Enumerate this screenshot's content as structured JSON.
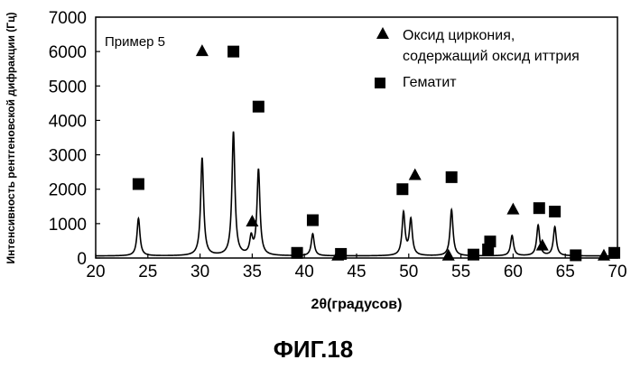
{
  "chart_data": {
    "type": "line",
    "panel_label": "Пример 5",
    "xlabel": "2θ(градусов)",
    "ylabel": "Интенсивность рентгеновской дифракции (Гц)",
    "xlim": [
      20,
      70
    ],
    "ylim": [
      0,
      7000
    ],
    "x_ticks": [
      20,
      25,
      30,
      35,
      40,
      45,
      50,
      55,
      60,
      65,
      70
    ],
    "y_ticks": [
      0,
      1000,
      2000,
      3000,
      4000,
      5000,
      6000,
      7000
    ],
    "x_tick_labels": [
      "20",
      "25",
      "30",
      "35",
      "40",
      "45",
      "50",
      "55",
      "60",
      "65",
      "70"
    ],
    "y_tick_labels": [
      "0",
      "1000",
      "2000",
      "3000",
      "4000",
      "5000",
      "6000",
      "7000"
    ],
    "baseline": 60,
    "peaks": [
      {
        "x": 24.1,
        "y": 1150
      },
      {
        "x": 30.2,
        "y": 2900
      },
      {
        "x": 33.2,
        "y": 3650
      },
      {
        "x": 34.9,
        "y": 550
      },
      {
        "x": 35.6,
        "y": 2550
      },
      {
        "x": 40.8,
        "y": 700
      },
      {
        "x": 49.5,
        "y": 1300
      },
      {
        "x": 50.2,
        "y": 1100
      },
      {
        "x": 54.1,
        "y": 1400
      },
      {
        "x": 59.9,
        "y": 650
      },
      {
        "x": 62.4,
        "y": 950
      },
      {
        "x": 64.0,
        "y": 900
      }
    ],
    "series": [
      {
        "name": "Оксид циркония, содержащий оксид иттрия",
        "marker": "triangle",
        "points": [
          {
            "x": 30.2,
            "y": 6000
          },
          {
            "x": 35.0,
            "y": 1050
          },
          {
            "x": 43.2,
            "y": 60
          },
          {
            "x": 50.6,
            "y": 2400
          },
          {
            "x": 53.8,
            "y": 60
          },
          {
            "x": 60.0,
            "y": 1400
          },
          {
            "x": 62.8,
            "y": 350
          },
          {
            "x": 68.7,
            "y": 60
          }
        ]
      },
      {
        "name": "Гематит",
        "marker": "square",
        "points": [
          {
            "x": 24.1,
            "y": 2150
          },
          {
            "x": 33.2,
            "y": 6000
          },
          {
            "x": 35.6,
            "y": 4400
          },
          {
            "x": 39.3,
            "y": 150
          },
          {
            "x": 40.8,
            "y": 1100
          },
          {
            "x": 43.5,
            "y": 120
          },
          {
            "x": 49.4,
            "y": 2000
          },
          {
            "x": 54.1,
            "y": 2350
          },
          {
            "x": 56.2,
            "y": 100
          },
          {
            "x": 57.6,
            "y": 250
          },
          {
            "x": 57.8,
            "y": 480
          },
          {
            "x": 62.5,
            "y": 1450
          },
          {
            "x": 64.0,
            "y": 1350
          },
          {
            "x": 66.0,
            "y": 80
          },
          {
            "x": 69.7,
            "y": 150
          }
        ]
      }
    ],
    "legend": {
      "placement": "top-right",
      "entries": [
        {
          "marker": "triangle",
          "lines": [
            "Оксид циркония,",
            "содержащий оксид иттрия"
          ]
        },
        {
          "marker": "square",
          "lines": [
            "Гематит"
          ]
        }
      ]
    },
    "grid": false
  },
  "figure_caption": "ФИГ.18"
}
